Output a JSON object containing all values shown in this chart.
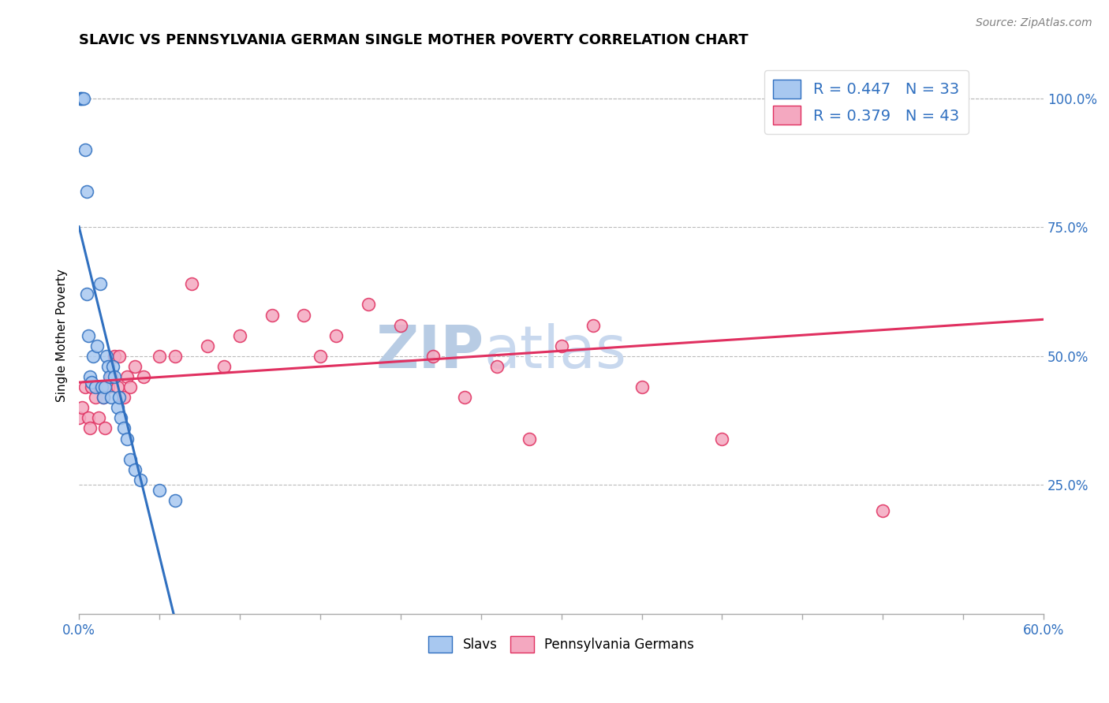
{
  "title": "SLAVIC VS PENNSYLVANIA GERMAN SINGLE MOTHER POVERTY CORRELATION CHART",
  "source": "Source: ZipAtlas.com",
  "ylabel": "Single Mother Poverty",
  "right_yticks": [
    25.0,
    50.0,
    75.0,
    100.0
  ],
  "slavs_R": 0.447,
  "slavs_N": 33,
  "pg_R": 0.379,
  "pg_N": 43,
  "slavs_color": "#A8C8F0",
  "pg_color": "#F4A8C0",
  "slavs_line_color": "#3070C0",
  "pg_line_color": "#E03060",
  "background_color": "#FFFFFF",
  "grid_color": "#BBBBBB",
  "legend_text_color": "#3070C0",
  "watermark_color": "#C8D8EE",
  "slavs_x": [
    0.001,
    0.001,
    0.002,
    0.003,
    0.004,
    0.005,
    0.005,
    0.006,
    0.007,
    0.008,
    0.009,
    0.01,
    0.011,
    0.013,
    0.014,
    0.015,
    0.016,
    0.017,
    0.018,
    0.019,
    0.02,
    0.021,
    0.022,
    0.024,
    0.025,
    0.026,
    0.028,
    0.03,
    0.032,
    0.035,
    0.038,
    0.05,
    0.06
  ],
  "slavs_y": [
    1.0,
    1.0,
    1.0,
    1.0,
    0.9,
    0.62,
    0.82,
    0.54,
    0.46,
    0.45,
    0.5,
    0.44,
    0.52,
    0.64,
    0.44,
    0.42,
    0.44,
    0.5,
    0.48,
    0.46,
    0.42,
    0.48,
    0.46,
    0.4,
    0.42,
    0.38,
    0.36,
    0.34,
    0.3,
    0.28,
    0.26,
    0.24,
    0.22
  ],
  "pg_x": [
    0.0,
    0.002,
    0.004,
    0.006,
    0.007,
    0.008,
    0.01,
    0.012,
    0.013,
    0.015,
    0.016,
    0.018,
    0.02,
    0.022,
    0.024,
    0.025,
    0.028,
    0.03,
    0.032,
    0.035,
    0.04,
    0.05,
    0.06,
    0.07,
    0.08,
    0.09,
    0.1,
    0.12,
    0.14,
    0.15,
    0.16,
    0.18,
    0.2,
    0.22,
    0.24,
    0.26,
    0.28,
    0.3,
    0.32,
    0.35,
    0.4,
    0.5,
    0.52
  ],
  "pg_y": [
    0.38,
    0.4,
    0.44,
    0.38,
    0.36,
    0.44,
    0.42,
    0.38,
    0.44,
    0.42,
    0.36,
    0.44,
    0.46,
    0.5,
    0.44,
    0.5,
    0.42,
    0.46,
    0.44,
    0.48,
    0.46,
    0.5,
    0.5,
    0.64,
    0.52,
    0.48,
    0.54,
    0.58,
    0.58,
    0.5,
    0.54,
    0.6,
    0.56,
    0.5,
    0.42,
    0.48,
    0.34,
    0.52,
    0.56,
    0.44,
    0.34,
    0.2,
    1.0
  ],
  "xlim": [
    0.0,
    0.6
  ],
  "ylim": [
    0.0,
    1.08
  ],
  "slavs_trend_x": [
    0.0,
    0.06
  ],
  "pg_trend_x": [
    0.0,
    0.6
  ]
}
